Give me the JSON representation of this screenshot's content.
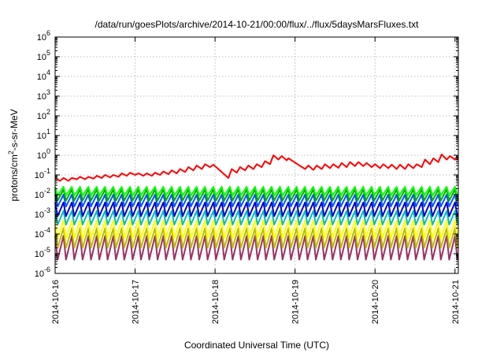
{
  "chart_data": {
    "type": "line",
    "title": "/data/run/goesPlots/archive/2014-10-21/00:00/flux/../flux/5daysMarsFluxes.txt",
    "xlabel": "Coordinated Universal Time (UTC)",
    "ylabel_base": "protons/cm",
    "ylabel_sup": "2",
    "ylabel_rest": "-s-sr-MeV",
    "yscale": "log",
    "ylim": [
      1e-06,
      1000000.0
    ],
    "y_ticks": [
      {
        "base": "10",
        "exp": "-6",
        "value": 1e-06
      },
      {
        "base": "10",
        "exp": "-5",
        "value": 1e-05
      },
      {
        "base": "10",
        "exp": "-4",
        "value": 0.0001
      },
      {
        "base": "10",
        "exp": "-3",
        "value": 0.001
      },
      {
        "base": "10",
        "exp": "-2",
        "value": 0.01
      },
      {
        "base": "10",
        "exp": "-1",
        "value": 0.1
      },
      {
        "base": "10",
        "exp": "0",
        "value": 1
      },
      {
        "base": "10",
        "exp": "1",
        "value": 10.0
      },
      {
        "base": "10",
        "exp": "2",
        "value": 100.0
      },
      {
        "base": "10",
        "exp": "3",
        "value": 1000.0
      },
      {
        "base": "10",
        "exp": "4",
        "value": 10000.0
      },
      {
        "base": "10",
        "exp": "5",
        "value": 100000.0
      },
      {
        "base": "10",
        "exp": "6",
        "value": 1000000.0
      }
    ],
    "xlim": [
      "2014-10-16",
      "2014-10-21T01:00"
    ],
    "x_ticks": [
      {
        "label": "2014-10-16",
        "value": "2014-10-16"
      },
      {
        "label": "2014-10-17",
        "value": "2014-10-17"
      },
      {
        "label": "2014-10-18",
        "value": "2014-10-18"
      },
      {
        "label": "2014-10-19",
        "value": "2014-10-19"
      },
      {
        "label": "2014-10-20",
        "value": "2014-10-20"
      },
      {
        "label": "2014-10-21",
        "value": "2014-10-21"
      }
    ],
    "grid": true,
    "legend": "none",
    "series": [
      {
        "color": "#ff0000",
        "stroke_width": 2,
        "points": [
          [
            "2014-10-16T00:00",
            0.07
          ],
          [
            "2014-10-16T01:30",
            0.05
          ],
          [
            "2014-10-16T02:30",
            0.07
          ],
          [
            "2014-10-16T04:00",
            0.05
          ],
          [
            "2014-10-16T05:00",
            0.07
          ],
          [
            "2014-10-16T06:30",
            0.06
          ],
          [
            "2014-10-16T07:30",
            0.08
          ],
          [
            "2014-10-16T09:00",
            0.06
          ],
          [
            "2014-10-16T10:00",
            0.08
          ],
          [
            "2014-10-16T11:30",
            0.065
          ],
          [
            "2014-10-16T12:30",
            0.09
          ],
          [
            "2014-10-16T14:00",
            0.07
          ],
          [
            "2014-10-16T15:00",
            0.1
          ],
          [
            "2014-10-16T16:30",
            0.075
          ],
          [
            "2014-10-16T17:30",
            0.1
          ],
          [
            "2014-10-16T19:00",
            0.08
          ],
          [
            "2014-10-16T20:00",
            0.12
          ],
          [
            "2014-10-16T21:30",
            0.09
          ],
          [
            "2014-10-16T22:30",
            0.13
          ],
          [
            "2014-10-17T00:00",
            0.1
          ],
          [
            "2014-10-17T01:00",
            0.12
          ],
          [
            "2014-10-17T02:30",
            0.09
          ],
          [
            "2014-10-17T03:30",
            0.12
          ],
          [
            "2014-10-17T05:00",
            0.09
          ],
          [
            "2014-10-17T06:00",
            0.13
          ],
          [
            "2014-10-17T07:30",
            0.1
          ],
          [
            "2014-10-17T08:30",
            0.15
          ],
          [
            "2014-10-17T10:00",
            0.11
          ],
          [
            "2014-10-17T11:00",
            0.17
          ],
          [
            "2014-10-17T12:30",
            0.12
          ],
          [
            "2014-10-17T13:30",
            0.2
          ],
          [
            "2014-10-17T15:00",
            0.14
          ],
          [
            "2014-10-17T16:00",
            0.25
          ],
          [
            "2014-10-17T17:30",
            0.17
          ],
          [
            "2014-10-17T18:30",
            0.3
          ],
          [
            "2014-10-17T20:00",
            0.2
          ],
          [
            "2014-10-17T21:00",
            0.35
          ],
          [
            "2014-10-17T22:30",
            0.25
          ],
          [
            "2014-10-17T23:30",
            0.33
          ],
          [
            "2014-10-18T04:00",
            0.07
          ],
          [
            "2014-10-18T05:00",
            0.2
          ],
          [
            "2014-10-18T06:30",
            0.13
          ],
          [
            "2014-10-18T07:30",
            0.25
          ],
          [
            "2014-10-18T09:00",
            0.17
          ],
          [
            "2014-10-18T10:00",
            0.3
          ],
          [
            "2014-10-18T11:30",
            0.2
          ],
          [
            "2014-10-18T12:30",
            0.35
          ],
          [
            "2014-10-18T14:00",
            0.25
          ],
          [
            "2014-10-18T15:00",
            0.5
          ],
          [
            "2014-10-18T16:30",
            0.35
          ],
          [
            "2014-10-18T17:30",
            1.0
          ],
          [
            "2014-10-18T19:00",
            0.6
          ],
          [
            "2014-10-18T20:00",
            0.9
          ],
          [
            "2014-10-18T21:30",
            0.55
          ],
          [
            "2014-10-18T22:00",
            0.7
          ],
          [
            "2014-10-19T03:00",
            0.2
          ],
          [
            "2014-10-19T04:00",
            0.3
          ],
          [
            "2014-10-19T05:30",
            0.18
          ],
          [
            "2014-10-19T06:30",
            0.3
          ],
          [
            "2014-10-19T08:00",
            0.2
          ],
          [
            "2014-10-19T09:00",
            0.35
          ],
          [
            "2014-10-19T10:30",
            0.22
          ],
          [
            "2014-10-19T11:30",
            0.35
          ],
          [
            "2014-10-19T13:00",
            0.23
          ],
          [
            "2014-10-19T14:00",
            0.4
          ],
          [
            "2014-10-19T15:30",
            0.25
          ],
          [
            "2014-10-19T16:30",
            0.45
          ],
          [
            "2014-10-19T18:00",
            0.28
          ],
          [
            "2014-10-19T19:00",
            0.45
          ],
          [
            "2014-10-19T20:30",
            0.28
          ],
          [
            "2014-10-19T21:30",
            0.4
          ],
          [
            "2014-10-19T23:00",
            0.25
          ],
          [
            "2014-10-20T00:00",
            0.35
          ],
          [
            "2014-10-20T01:30",
            0.22
          ],
          [
            "2014-10-20T02:30",
            0.35
          ],
          [
            "2014-10-20T04:00",
            0.22
          ],
          [
            "2014-10-20T05:00",
            0.33
          ],
          [
            "2014-10-20T06:30",
            0.2
          ],
          [
            "2014-10-20T07:30",
            0.33
          ],
          [
            "2014-10-20T09:00",
            0.2
          ],
          [
            "2014-10-20T10:00",
            0.35
          ],
          [
            "2014-10-20T11:30",
            0.22
          ],
          [
            "2014-10-20T12:30",
            0.35
          ],
          [
            "2014-10-20T14:00",
            0.25
          ],
          [
            "2014-10-20T15:00",
            0.6
          ],
          [
            "2014-10-20T16:30",
            0.35
          ],
          [
            "2014-10-20T17:30",
            0.7
          ],
          [
            "2014-10-20T19:00",
            0.45
          ],
          [
            "2014-10-20T20:00",
            1.1
          ],
          [
            "2014-10-20T21:30",
            0.6
          ],
          [
            "2014-10-20T22:30",
            0.9
          ],
          [
            "2014-10-21T00:00",
            0.6
          ],
          [
            "2014-10-21T00:30",
            0.8
          ],
          [
            "2014-10-21T01:00",
            0.6
          ]
        ]
      },
      {
        "color": "#00ff00",
        "stroke_width": 2,
        "peak": 0.025,
        "trough": 0.009
      },
      {
        "color": "#00aa00",
        "stroke_width": 2,
        "peak": 0.018,
        "trough": 0.005
      },
      {
        "color": "#0055ff",
        "stroke_width": 2,
        "peak": 0.01,
        "trough": 0.0025
      },
      {
        "color": "#0000cc",
        "stroke_width": 2,
        "peak": 0.004,
        "trough": 0.0008
      },
      {
        "color": "#00bbbb",
        "stroke_width": 2,
        "peak": 0.0015,
        "trough": 0.0003
      },
      {
        "color": "#ffff00",
        "stroke_width": 2,
        "peak": 0.0005,
        "trough": 6e-05
      },
      {
        "color": "#bbbb00",
        "stroke_width": 2,
        "peak": 0.0002,
        "trough": 2e-05
      },
      {
        "color": "#993366",
        "stroke_width": 2,
        "peak": 8e-05,
        "trough": 5e-06
      }
    ]
  }
}
